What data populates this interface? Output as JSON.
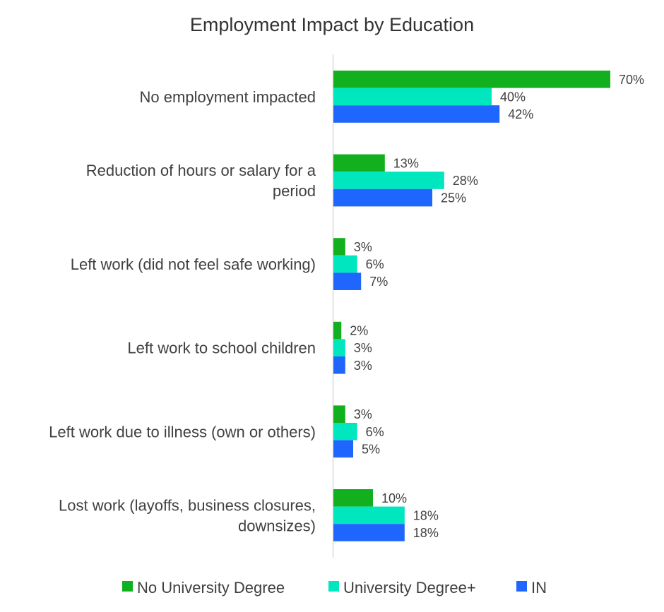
{
  "chart_data": {
    "type": "bar",
    "orientation": "horizontal",
    "title": "Employment Impact by Education",
    "xlabel": "",
    "ylabel": "",
    "xlim": [
      0,
      70
    ],
    "grid": false,
    "legend_position": "bottom",
    "value_suffix": "%",
    "categories": [
      [
        "No employment impacted"
      ],
      [
        "Reduction of hours or salary for a",
        "period"
      ],
      [
        "Left work (did not feel safe working)"
      ],
      [
        "Left work to school children"
      ],
      [
        "Left work due to illness (own or others)"
      ],
      [
        "Lost work (layoffs, business closures,",
        "downsizes)"
      ]
    ],
    "series": [
      {
        "name": "No University Degree",
        "color": "#12b01f",
        "values": [
          70,
          13,
          3,
          2,
          3,
          10
        ]
      },
      {
        "name": "University Degree+",
        "color": "#00e6be",
        "values": [
          40,
          28,
          6,
          3,
          6,
          18
        ]
      },
      {
        "name": "IN",
        "color": "#1f66ff",
        "values": [
          42,
          25,
          7,
          3,
          5,
          18
        ]
      }
    ]
  }
}
